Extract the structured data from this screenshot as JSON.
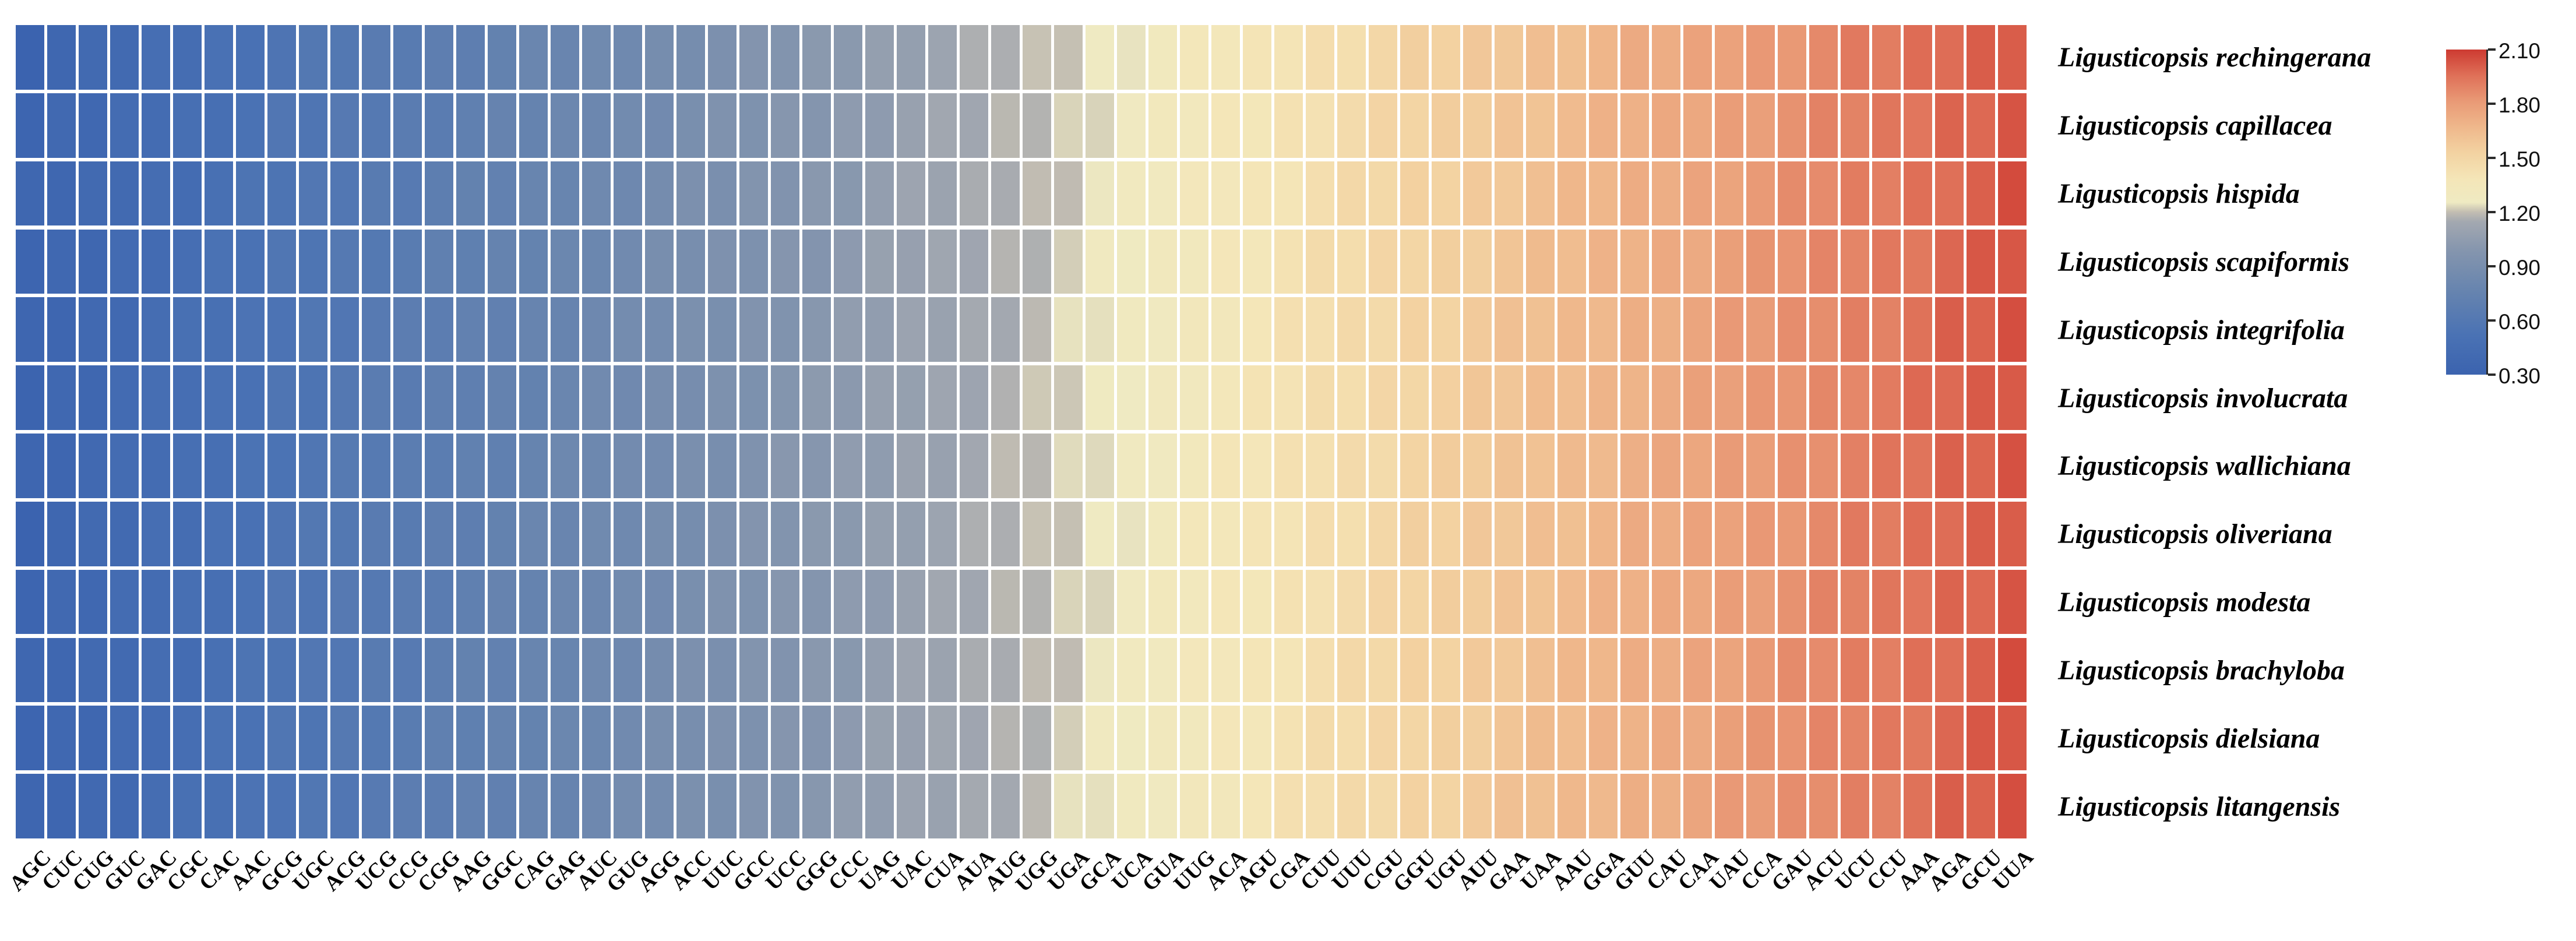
{
  "figure": {
    "background": "#ffffff",
    "accent_low_color": "#3B63AF",
    "accent_mid_color": "#EFEAC2",
    "accent_high_color": "#CD3A31"
  },
  "chart_data": {
    "type": "heatmap",
    "title": "",
    "xlabel": "",
    "ylabel": "",
    "legend_position": "right",
    "grid": false,
    "x_categories": [
      "AGC",
      "CUC",
      "CUG",
      "GUC",
      "GAC",
      "CGC",
      "CAC",
      "AAC",
      "GCG",
      "UGC",
      "ACG",
      "UCG",
      "CCG",
      "CGG",
      "AAG",
      "GGC",
      "CAG",
      "GAG",
      "AUC",
      "GUG",
      "AGG",
      "ACC",
      "UUC",
      "GCC",
      "UCC",
      "GGG",
      "CCC",
      "UAG",
      "UAC",
      "CUA",
      "AUA",
      "AUG",
      "UGG",
      "UGA",
      "GCA",
      "UCA",
      "GUA",
      "UUG",
      "ACA",
      "AGU",
      "CGA",
      "CUU",
      "UUU",
      "CGU",
      "GGU",
      "UGU",
      "AUU",
      "GAA",
      "UAA",
      "AAU",
      "GGA",
      "GUU",
      "CAU",
      "CAA",
      "UAU",
      "CCA",
      "GAU",
      "ACU",
      "UCU",
      "CCU",
      "AAA",
      "AGA",
      "GCU",
      "UUA"
    ],
    "y_categories": [
      "Ligusticopsis rechingerana",
      "Ligusticopsis capillacea",
      "Ligusticopsis hispida",
      "Ligusticopsis scapiformis",
      "Ligusticopsis integrifolia",
      "Ligusticopsis involucrata",
      "Ligusticopsis wallichiana",
      "Ligusticopsis oliveriana",
      "Ligusticopsis modesta",
      "Ligusticopsis brachyloba",
      "Ligusticopsis dielsiana",
      "Ligusticopsis litangensis"
    ],
    "values_by_codon": [
      0.33,
      0.36,
      0.38,
      0.41,
      0.44,
      0.46,
      0.49,
      0.52,
      0.55,
      0.57,
      0.6,
      0.63,
      0.65,
      0.68,
      0.71,
      0.73,
      0.76,
      0.79,
      0.82,
      0.84,
      0.87,
      0.9,
      0.92,
      0.95,
      0.98,
      1.0,
      1.03,
      1.06,
      1.09,
      1.11,
      1.14,
      1.17,
      1.19,
      1.22,
      1.25,
      1.27,
      1.3,
      1.33,
      1.36,
      1.38,
      1.41,
      1.44,
      1.46,
      1.49,
      1.52,
      1.54,
      1.57,
      1.6,
      1.63,
      1.65,
      1.68,
      1.71,
      1.73,
      1.76,
      1.79,
      1.81,
      1.84,
      1.87,
      1.9,
      1.92,
      1.95,
      1.98,
      2.0,
      2.03
    ],
    "value_note": "RSCU values increase nearly uniformly left to right; all 12 species rows share almost identical values per codon column",
    "colorbar": {
      "min": 0.3,
      "max": 2.1,
      "tick_labels": [
        "2.10",
        "1.80",
        "1.50",
        "1.20",
        "0.90",
        "0.60",
        "0.30"
      ],
      "tick_values": [
        2.1,
        1.8,
        1.5,
        1.2,
        0.9,
        0.6,
        0.3
      ]
    },
    "colormap_stops": [
      [
        0.0,
        "#3B63AF"
      ],
      [
        0.12,
        "#4A72B4"
      ],
      [
        0.25,
        "#6583AF"
      ],
      [
        0.38,
        "#8495AE"
      ],
      [
        0.47,
        "#A3A8B0"
      ],
      [
        0.5,
        "#C2BDB2"
      ],
      [
        0.53,
        "#EFEAC2"
      ],
      [
        0.6,
        "#F4E6B8"
      ],
      [
        0.68,
        "#F3D3A2"
      ],
      [
        0.76,
        "#EFB88C"
      ],
      [
        0.84,
        "#E99A76"
      ],
      [
        0.92,
        "#DF7058"
      ],
      [
        1.0,
        "#CD3A31"
      ]
    ]
  }
}
